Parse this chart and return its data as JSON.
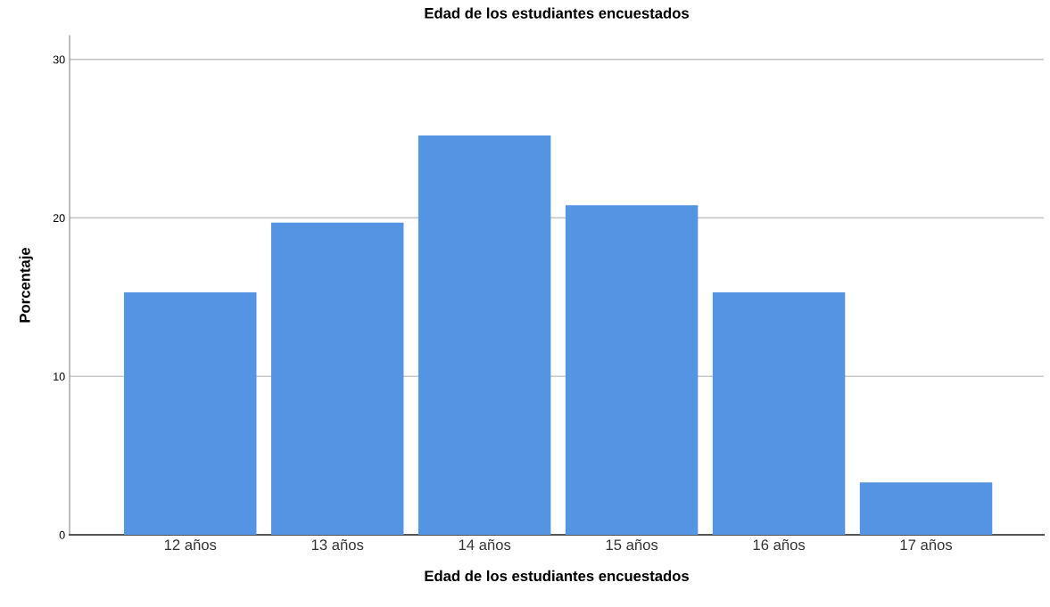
{
  "chart_data": {
    "type": "bar",
    "title": "Edad de los estudiantes encuestados",
    "xlabel": "Edad de los estudiantes encuestados",
    "ylabel": "Porcentaje",
    "categories": [
      "12 años",
      "13 años",
      "14 años",
      "15 años",
      "16 años",
      "17 años"
    ],
    "values": [
      15.3,
      19.7,
      25.2,
      20.8,
      15.3,
      3.3
    ],
    "color": "#5594e2",
    "ylim": [
      0,
      31.5
    ],
    "yticks": [
      0,
      10,
      20,
      30
    ],
    "grid": "y",
    "legend": false
  }
}
